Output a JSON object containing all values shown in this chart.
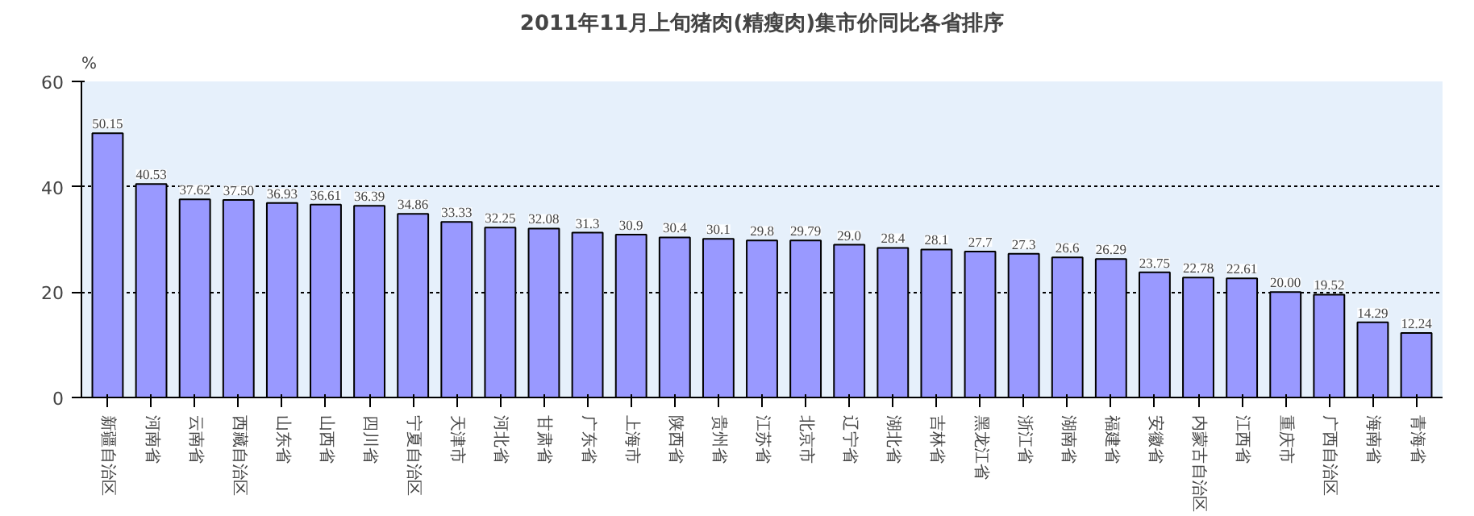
{
  "chart_data": {
    "type": "bar",
    "title": "2011年11月上旬猪肉(精瘦肉)集市价同比各省排序",
    "ylabel": "%",
    "categories": [
      "新疆自治区",
      "河南省",
      "云南省",
      "西藏自治区",
      "山东省",
      "山西省",
      "四川省",
      "宁夏自治区",
      "天津市",
      "河北省",
      "甘肃省",
      "广东省",
      "上海市",
      "陕西省",
      "贵州省",
      "江苏省",
      "北京市",
      "辽宁省",
      "湖北省",
      "吉林省",
      "黑龙江省",
      "浙江省",
      "湖南省",
      "福建省",
      "安徽省",
      "内蒙古自治区",
      "江西省",
      "重庆市",
      "广西自治区",
      "海南省",
      "青海省"
    ],
    "values": [
      50.15,
      40.53,
      37.62,
      37.5,
      36.93,
      36.61,
      36.39,
      34.86,
      33.33,
      32.25,
      32.08,
      31.3,
      30.9,
      30.4,
      30.1,
      29.8,
      29.79,
      29.0,
      28.4,
      28.1,
      27.7,
      27.3,
      26.6,
      26.29,
      23.75,
      22.78,
      22.61,
      20.0,
      19.52,
      14.29,
      12.24
    ],
    "value_labels": [
      "50.15",
      "40.53",
      "37.62",
      "37.50",
      "36.93",
      "36.61",
      "36.39",
      "34.86",
      "33.33",
      "32.25",
      "32.08",
      "31.3",
      "30.9",
      "30.4",
      "30.1",
      "29.8",
      "29.79",
      "29.0",
      "28.4",
      "28.1",
      "27.7",
      "27.3",
      "26.6",
      "26.29",
      "23.75",
      "22.78",
      "22.61",
      "20.00",
      "19.52",
      "14.29",
      "12.24"
    ],
    "color": "#9999ff",
    "ylim": [
      0,
      60
    ],
    "yticks": [
      0,
      20,
      40,
      60
    ],
    "grid": "y"
  }
}
